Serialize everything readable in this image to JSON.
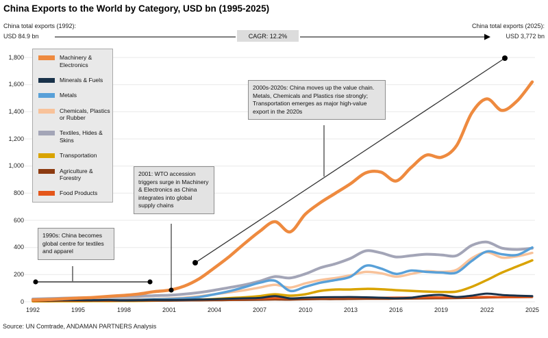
{
  "title": "China Exports to the World by Category, USD bn (1995-2025)",
  "header": {
    "left_label": "China total exports (1992):",
    "left_value": "USD 84.9 bn",
    "cagr_label": "CAGR: 12.2%",
    "right_label": "China total exports (2025):",
    "right_value": "USD 3,772 bn"
  },
  "annotations": [
    {
      "id": "note-1990s",
      "text": "1990s: China becomes global centre for textiles and apparel"
    },
    {
      "id": "note-2001",
      "text": "2001: WTO accession triggers surge in Machinery & Electronics as China integrates into global supply chains"
    },
    {
      "id": "note-2000s",
      "text": "2000s-2020s: China moves up the value chain. Metals, Chemicals and Plastics rise strongly; Transportation emerges as major high-value export in the 2020s"
    }
  ],
  "source": "Source: UN Comtrade, ANDAMAN PARTNERS Analysis",
  "colors": {
    "grid": "#e8e8e8",
    "connector": "#333333",
    "annotation_bg": "#e3e3e3"
  },
  "chart_data": {
    "type": "line",
    "title": "China Exports to the World by Category, USD bn (1995-2025)",
    "xlabel": "",
    "ylabel": "USD bn",
    "xlim": [
      1992,
      2025
    ],
    "ylim": [
      0,
      1800
    ],
    "grid": "horizontal",
    "legend_position": "upper-left",
    "x": [
      1992,
      1993,
      1994,
      1995,
      1996,
      1997,
      1998,
      1999,
      2000,
      2001,
      2002,
      2003,
      2004,
      2005,
      2006,
      2007,
      2008,
      2009,
      2010,
      2011,
      2012,
      2013,
      2014,
      2015,
      2016,
      2017,
      2018,
      2019,
      2020,
      2021,
      2022,
      2023,
      2024,
      2025
    ],
    "x_tick_labels": [
      "1992",
      "1995",
      "1998",
      "2001",
      "2004",
      "2007",
      "2010",
      "2013",
      "2016",
      "2019",
      "2022",
      "2025"
    ],
    "x_ticks": [
      1992,
      1995,
      1998,
      2001,
      2004,
      2007,
      2010,
      2013,
      2016,
      2019,
      2022,
      2025
    ],
    "y_ticks": [
      0,
      200,
      400,
      600,
      800,
      1000,
      1200,
      1400,
      1600,
      1800
    ],
    "y_tick_labels": [
      "0",
      "200",
      "400",
      "600",
      "800",
      "1,000",
      "1,200",
      "1,400",
      "1,600",
      "1,800"
    ],
    "draw_order": [
      3,
      4,
      2,
      5,
      6,
      7,
      1,
      0
    ],
    "series": [
      {
        "name": "Machinery & Electronics",
        "color": "#ee8a3f",
        "width": 4.5,
        "values": [
          13,
          16,
          21,
          27,
          32,
          40,
          47,
          57,
          74,
          85,
          115,
          170,
          250,
          335,
          430,
          520,
          590,
          515,
          645,
          730,
          800,
          870,
          950,
          955,
          890,
          990,
          1080,
          1065,
          1150,
          1390,
          1495,
          1410,
          1480,
          1620
        ]
      },
      {
        "name": "Minerals & Fuels",
        "color": "#19324a",
        "width": 3,
        "values": [
          10,
          10,
          11,
          12,
          11,
          13,
          10,
          11,
          14,
          13,
          14,
          16,
          18,
          22,
          25,
          28,
          42,
          25,
          30,
          33,
          34,
          35,
          33,
          30,
          25,
          30,
          45,
          50,
          35,
          45,
          60,
          50,
          45,
          42
        ]
      },
      {
        "name": "Metals",
        "color": "#58a0d8",
        "width": 3.5,
        "values": [
          5,
          6,
          8,
          10,
          11,
          13,
          14,
          15,
          18,
          20,
          25,
          35,
          55,
          78,
          108,
          140,
          155,
          80,
          110,
          140,
          160,
          185,
          265,
          245,
          205,
          230,
          220,
          215,
          215,
          300,
          370,
          350,
          345,
          400
        ]
      },
      {
        "name": "Chemicals, Plastics or Rubber",
        "color": "#f8c29a",
        "width": 3.5,
        "values": [
          8,
          9,
          10,
          12,
          13,
          15,
          16,
          18,
          21,
          24,
          30,
          40,
          55,
          70,
          85,
          105,
          125,
          105,
          135,
          160,
          175,
          195,
          220,
          210,
          185,
          205,
          225,
          220,
          235,
          320,
          365,
          325,
          335,
          360
        ]
      },
      {
        "name": "Textiles, Hides & Skins",
        "color": "#a3a5b7",
        "width": 4,
        "values": [
          20,
          23,
          26,
          29,
          31,
          36,
          38,
          40,
          45,
          48,
          56,
          68,
          85,
          105,
          125,
          152,
          185,
          175,
          205,
          250,
          280,
          320,
          375,
          360,
          330,
          340,
          350,
          345,
          340,
          415,
          440,
          395,
          385,
          395
        ]
      },
      {
        "name": "Transportation",
        "color": "#d9a300",
        "width": 3.5,
        "values": [
          3,
          3,
          4,
          4,
          5,
          5,
          6,
          6,
          8,
          10,
          12,
          15,
          20,
          27,
          33,
          42,
          55,
          45,
          55,
          80,
          90,
          90,
          95,
          92,
          85,
          80,
          75,
          72,
          75,
          110,
          160,
          215,
          260,
          305
        ]
      },
      {
        "name": "Agriculture & Forestry",
        "color": "#8c3a10",
        "width": 2.5,
        "values": [
          5,
          5,
          6,
          6,
          6,
          6,
          6,
          7,
          7,
          7,
          8,
          9,
          10,
          11,
          12,
          13,
          15,
          14,
          16,
          18,
          18,
          19,
          20,
          20,
          21,
          22,
          23,
          24,
          25,
          27,
          30,
          31,
          32,
          33
        ]
      },
      {
        "name": "Food Products",
        "color": "#e4561a",
        "width": 3,
        "values": [
          8,
          9,
          9,
          10,
          10,
          11,
          11,
          12,
          12,
          13,
          14,
          15,
          17,
          19,
          21,
          23,
          26,
          25,
          27,
          29,
          29,
          30,
          31,
          30,
          31,
          31,
          32,
          32,
          33,
          34,
          36,
          34,
          34,
          36
        ]
      }
    ]
  }
}
